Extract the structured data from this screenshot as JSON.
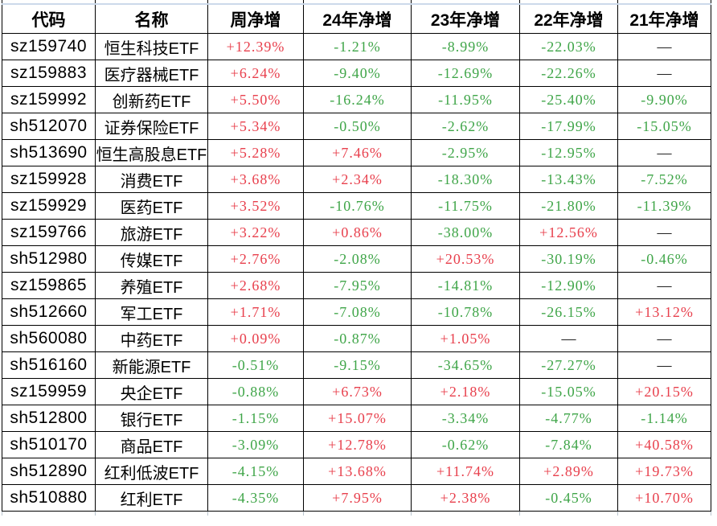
{
  "colors": {
    "positive": "#e8404d",
    "negative": "#3fa548",
    "neutral": "#000000",
    "grid_border": "#000000",
    "top_strip": "#ccd9ea"
  },
  "chart_data": {
    "type": "table",
    "columns": [
      {
        "key": "code",
        "label": "代码"
      },
      {
        "key": "name",
        "label": "名称"
      },
      {
        "key": "week",
        "label": "周净增"
      },
      {
        "key": "y24",
        "label": "24年净增"
      },
      {
        "key": "y23",
        "label": "23年净增"
      },
      {
        "key": "y22",
        "label": "22年净增"
      },
      {
        "key": "y21",
        "label": "21年净增"
      }
    ],
    "rows": [
      {
        "code": "sz159740",
        "name": "恒生科技ETF",
        "week": "+12.39%",
        "y24": "-1.21%",
        "y23": "-8.99%",
        "y22": "-22.03%",
        "y21": "—"
      },
      {
        "code": "sz159883",
        "name": "医疗器械ETF",
        "week": "+6.24%",
        "y24": "-9.40%",
        "y23": "-12.69%",
        "y22": "-22.26%",
        "y21": "—"
      },
      {
        "code": "sz159992",
        "name": "创新药ETF",
        "week": "+5.50%",
        "y24": "-16.24%",
        "y23": "-11.95%",
        "y22": "-25.40%",
        "y21": "-9.90%"
      },
      {
        "code": "sh512070",
        "name": "证券保险ETF",
        "week": "+5.34%",
        "y24": "-0.50%",
        "y23": "-2.62%",
        "y22": "-17.99%",
        "y21": "-15.05%"
      },
      {
        "code": "sh513690",
        "name": "恒生高股息ETF",
        "week": "+5.28%",
        "y24": "+7.46%",
        "y23": "-2.95%",
        "y22": "-12.95%",
        "y21": "—"
      },
      {
        "code": "sz159928",
        "name": "消费ETF",
        "week": "+3.68%",
        "y24": "+2.34%",
        "y23": "-18.30%",
        "y22": "-13.43%",
        "y21": "-7.52%"
      },
      {
        "code": "sz159929",
        "name": "医药ETF",
        "week": "+3.52%",
        "y24": "-10.76%",
        "y23": "-11.75%",
        "y22": "-21.80%",
        "y21": "-11.39%"
      },
      {
        "code": "sz159766",
        "name": "旅游ETF",
        "week": "+3.22%",
        "y24": "+0.86%",
        "y23": "-38.00%",
        "y22": "+12.56%",
        "y21": "—"
      },
      {
        "code": "sh512980",
        "name": "传媒ETF",
        "week": "+2.76%",
        "y24": "-2.08%",
        "y23": "+20.53%",
        "y22": "-30.19%",
        "y21": "-0.46%"
      },
      {
        "code": "sz159865",
        "name": "养殖ETF",
        "week": "+2.68%",
        "y24": "-7.95%",
        "y23": "-14.81%",
        "y22": "-12.90%",
        "y21": "—"
      },
      {
        "code": "sh512660",
        "name": "军工ETF",
        "week": "+1.71%",
        "y24": "-7.08%",
        "y23": "-10.78%",
        "y22": "-26.15%",
        "y21": "+13.12%"
      },
      {
        "code": "sh560080",
        "name": "中药ETF",
        "week": "+0.09%",
        "y24": "-0.87%",
        "y23": "+1.05%",
        "y22": "—",
        "y21": "—"
      },
      {
        "code": "sh516160",
        "name": "新能源ETF",
        "week": "-0.51%",
        "y24": "-9.15%",
        "y23": "-34.65%",
        "y22": "-27.27%",
        "y21": "—"
      },
      {
        "code": "sz159959",
        "name": "央企ETF",
        "week": "-0.88%",
        "y24": "+6.73%",
        "y23": "+2.18%",
        "y22": "-15.05%",
        "y21": "+20.15%"
      },
      {
        "code": "sh512800",
        "name": "银行ETF",
        "week": "-1.15%",
        "y24": "+15.07%",
        "y23": "-3.34%",
        "y22": "-4.77%",
        "y21": "-1.14%"
      },
      {
        "code": "sh510170",
        "name": "商品ETF",
        "week": "-3.09%",
        "y24": "+12.78%",
        "y23": "-0.62%",
        "y22": "-7.84%",
        "y21": "+40.58%"
      },
      {
        "code": "sh512890",
        "name": "红利低波ETF",
        "week": "-4.15%",
        "y24": "+13.68%",
        "y23": "+11.74%",
        "y22": "+2.89%",
        "y21": "+19.73%"
      },
      {
        "code": "sh510880",
        "name": "红利ETF",
        "week": "-4.35%",
        "y24": "+7.95%",
        "y23": "+2.38%",
        "y22": "-0.45%",
        "y21": "+10.70%"
      }
    ]
  }
}
